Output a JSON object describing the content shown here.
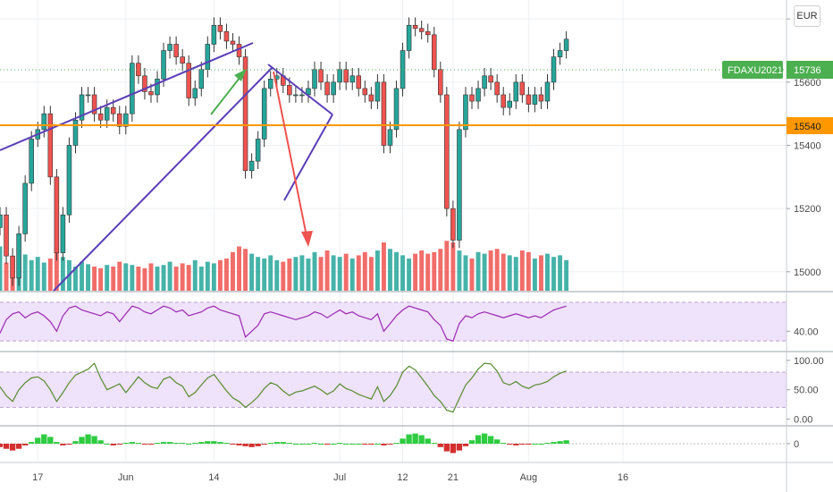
{
  "currency_button": "EUR",
  "colors": {
    "up": "#26a69a",
    "down": "#ef5350",
    "volume_up": "#26a69a",
    "volume_down": "#ef5350",
    "channel": "#5b3fb8",
    "level": "#ff9800",
    "symbol_badge": "#4caf50",
    "rsi_line": "#9c27b0",
    "osc_line": "#558b2f",
    "band_fill": "#efe2fb",
    "grid": "#eef0f3"
  },
  "chart_data": [
    {
      "type": "candlestick",
      "symbol_label": "FDAXU2021",
      "last_value": 15736,
      "level_value": 15540,
      "yticks": [
        15000,
        15200,
        15400,
        15600,
        15800
      ],
      "ylim": [
        14940,
        15860
      ],
      "xticks": [
        {
          "label": "17",
          "index": 6
        },
        {
          "label": "Jun",
          "index": 20
        },
        {
          "label": "14",
          "index": 34
        },
        {
          "label": "Jul",
          "index": 54
        },
        {
          "label": "12",
          "index": 64
        },
        {
          "label": "21",
          "index": 72
        },
        {
          "label": "Aug",
          "index": 84
        },
        {
          "label": "16",
          "index": 99
        }
      ],
      "index_range": [
        0,
        125
      ],
      "last_index": 90,
      "close": [
        15180,
        15050,
        14980,
        15120,
        15280,
        15420,
        15450,
        15500,
        15300,
        15060,
        15180,
        15400,
        15480,
        15560,
        15560,
        15500,
        15480,
        15520,
        15500,
        15460,
        15500,
        15660,
        15620,
        15570,
        15560,
        15610,
        15700,
        15720,
        15680,
        15660,
        15550,
        15580,
        15640,
        15720,
        15780,
        15760,
        15730,
        15720,
        15680,
        15320,
        15350,
        15420,
        15580,
        15610,
        15620,
        15590,
        15560,
        15560,
        15560,
        15580,
        15640,
        15600,
        15560,
        15600,
        15640,
        15600,
        15620,
        15580,
        15560,
        15540,
        15600,
        15400,
        15450,
        15580,
        15700,
        15780,
        15770,
        15760,
        15750,
        15640,
        15560,
        15200,
        15100,
        15450,
        15560,
        15540,
        15580,
        15620,
        15600,
        15560,
        15520,
        15540,
        15600,
        15560,
        15530,
        15560,
        15540,
        15600,
        15680,
        15700,
        15736
      ],
      "volume": [
        55,
        35,
        40,
        30,
        45,
        38,
        42,
        35,
        40,
        60,
        42,
        38,
        30,
        36,
        33,
        30,
        28,
        32,
        30,
        36,
        34,
        32,
        30,
        28,
        34,
        30,
        32,
        36,
        30,
        34,
        32,
        38,
        30,
        36,
        34,
        38,
        40,
        48,
        55,
        52,
        46,
        42,
        40,
        44,
        38,
        36,
        40,
        42,
        44,
        40,
        48,
        42,
        50,
        44,
        42,
        46,
        40,
        44,
        48,
        42,
        50,
        60,
        52,
        48,
        44,
        40,
        46,
        50,
        46,
        48,
        52,
        62,
        60,
        50,
        44,
        40,
        48,
        46,
        50,
        52,
        46,
        44,
        42,
        50,
        48,
        40,
        44,
        46,
        42,
        44,
        38
      ],
      "annotations": [
        "rising channel upper line",
        "rising channel lower line",
        "support level line",
        "green arrow",
        "red arrow"
      ]
    },
    {
      "type": "line",
      "name": "rsi-panel",
      "yticks": [
        40
      ],
      "ylim": [
        20,
        80
      ],
      "band": [
        30,
        70
      ],
      "values": [
        38,
        52,
        58,
        60,
        54,
        58,
        60,
        56,
        50,
        40,
        56,
        64,
        66,
        62,
        60,
        58,
        56,
        60,
        58,
        50,
        58,
        66,
        64,
        60,
        58,
        62,
        66,
        64,
        60,
        62,
        56,
        58,
        60,
        64,
        66,
        62,
        60,
        58,
        56,
        34,
        40,
        46,
        58,
        60,
        58,
        56,
        54,
        52,
        54,
        56,
        60,
        58,
        54,
        58,
        62,
        58,
        60,
        56,
        54,
        52,
        58,
        40,
        48,
        56,
        62,
        66,
        64,
        62,
        60,
        52,
        46,
        32,
        30,
        48,
        56,
        54,
        58,
        60,
        58,
        56,
        54,
        56,
        58,
        56,
        54,
        56,
        54,
        58,
        62,
        64,
        66
      ]
    },
    {
      "type": "line",
      "name": "stochastic-panel",
      "yticks": [
        0,
        50,
        100
      ],
      "ytick_labels": [
        "0.00",
        "50.00",
        "100.00"
      ],
      "ylim": [
        -10,
        112
      ],
      "band": [
        20,
        80
      ],
      "values": [
        55,
        40,
        30,
        50,
        62,
        70,
        72,
        65,
        50,
        30,
        45,
        62,
        75,
        80,
        85,
        95,
        70,
        50,
        55,
        60,
        45,
        58,
        72,
        62,
        55,
        52,
        68,
        72,
        62,
        56,
        38,
        45,
        58,
        70,
        76,
        62,
        48,
        36,
        30,
        20,
        28,
        38,
        52,
        62,
        58,
        48,
        40,
        46,
        48,
        52,
        56,
        50,
        42,
        48,
        60,
        52,
        48,
        42,
        38,
        34,
        55,
        30,
        40,
        56,
        80,
        90,
        84,
        70,
        56,
        40,
        30,
        15,
        12,
        35,
        58,
        70,
        85,
        95,
        94,
        82,
        62,
        58,
        64,
        56,
        52,
        58,
        60,
        64,
        72,
        78,
        82
      ]
    },
    {
      "type": "histogram",
      "name": "momentum-panel",
      "yticks": [
        0
      ],
      "ylim": [
        -1,
        1
      ],
      "values": [
        -0.2,
        -0.3,
        -0.4,
        -0.3,
        -0.1,
        0.1,
        0.35,
        0.55,
        0.4,
        0.1,
        -0.1,
        -0.05,
        0.15,
        0.4,
        0.55,
        0.45,
        0.2,
        0.0,
        -0.1,
        -0.05,
        0.05,
        0.1,
        0.05,
        -0.05,
        -0.05,
        0.05,
        0.1,
        0.1,
        0.05,
        0.05,
        0.0,
        0.05,
        0.1,
        0.15,
        0.15,
        0.1,
        0.05,
        -0.05,
        -0.1,
        -0.15,
        -0.2,
        -0.15,
        -0.05,
        0.05,
        0.1,
        0.1,
        0.05,
        0.0,
        0.0,
        0.0,
        0.05,
        0.0,
        -0.05,
        0.0,
        0.05,
        0.0,
        0.0,
        0.0,
        -0.05,
        -0.05,
        0.0,
        -0.1,
        -0.05,
        0.05,
        0.3,
        0.55,
        0.6,
        0.5,
        0.3,
        0.05,
        -0.2,
        -0.45,
        -0.55,
        -0.4,
        -0.15,
        0.2,
        0.5,
        0.6,
        0.45,
        0.25,
        0.05,
        -0.05,
        -0.1,
        -0.05,
        -0.05,
        0.0,
        0.0,
        0.05,
        0.1,
        0.15,
        0.2
      ]
    }
  ]
}
